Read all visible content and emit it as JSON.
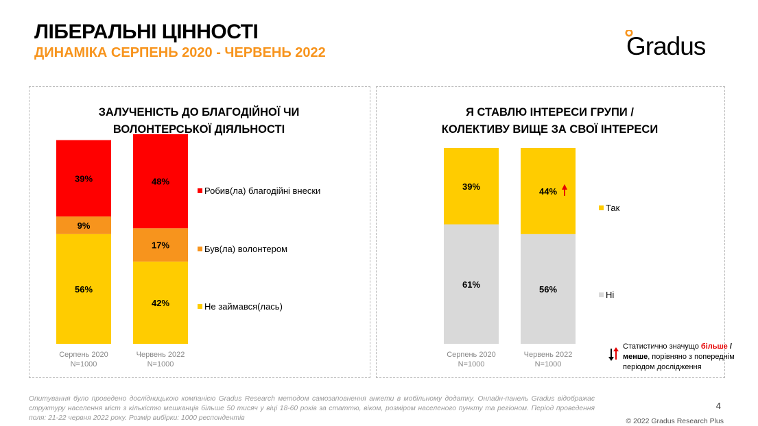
{
  "header": {
    "title": "ЛІБЕРАЛЬНІ ЦІННОСТІ",
    "subtitle": "ДИНАМІКА СЕРПЕНЬ 2020 - ЧЕРВЕНЬ 2022",
    "logo": "Gradus"
  },
  "colors": {
    "red": "#FF0000",
    "orange": "#F7941D",
    "yellow": "#FFCC00",
    "grey": "#D9D9D9",
    "accent_logo": "#F7941D"
  },
  "chart_data": [
    {
      "type": "bar",
      "stacked": true,
      "title_lines": [
        "ЗАЛУЧЕНІСТЬ ДО БЛАГОДІЙНОЇ ЧИ",
        "ВОЛОНТЕРСЬКОЇ ДІЯЛЬНОСТІ"
      ],
      "categories": [
        "Серпень 2020",
        "Червень 2022"
      ],
      "sample_labels": [
        "N=1000",
        "N=1000"
      ],
      "series": [
        {
          "name": "Не займався(лась)",
          "color": "#FFCC00",
          "values": [
            56,
            42
          ]
        },
        {
          "name": "Був(ла) волонтером",
          "color": "#F7941D",
          "values": [
            9,
            17
          ]
        },
        {
          "name": "Робив(ла) благодійні внески",
          "color": "#FF0000",
          "values": [
            39,
            48
          ]
        }
      ],
      "legend_order": [
        "Робив(ла) благодійні внески",
        "Був(ла) волонтером",
        "Не займався(лась)"
      ],
      "unit": "%",
      "significant_up": []
    },
    {
      "type": "bar",
      "stacked": true,
      "title_lines": [
        "Я СТАВЛЮ ІНТЕРЕСИ ГРУПИ /",
        "КОЛЕКТИВУ ВИЩЕ ЗА СВОЇ ІНТЕРЕСИ"
      ],
      "categories": [
        "Серпень 2020",
        "Червень 2022"
      ],
      "sample_labels": [
        "N=1000",
        "N=1000"
      ],
      "series": [
        {
          "name": "Ні",
          "color": "#D9D9D9",
          "values": [
            61,
            56
          ]
        },
        {
          "name": "Так",
          "color": "#FFCC00",
          "values": [
            39,
            44
          ]
        }
      ],
      "legend_order": [
        "Так",
        "Ні"
      ],
      "unit": "%",
      "significant_up": [
        {
          "series": "Так",
          "category": "Червень 2022"
        }
      ]
    }
  ],
  "significance_note": {
    "prefix": "Статистично значущо ",
    "more": "більше",
    "slash": " /",
    "less": "менше",
    "suffix": ", порівняно з попереднім періодом дослідження"
  },
  "footnote": "Опитування було проведено дослідницькою компанією Gradus Research методом самозаповнення анкети в мобільному додатку. Онлайн-панель Gradus відображає структуру населення міст з кількістю мешканців більше 50 тисяч у віці 18-60 років за статтю, віком, розміром населеного пункту та регіоном. Період проведення поля: 21-22 червня 2022 року. Розмір вибірки: 1000 респондентів",
  "page_number": "4",
  "copyright": "© 2022 Gradus Research Plus"
}
